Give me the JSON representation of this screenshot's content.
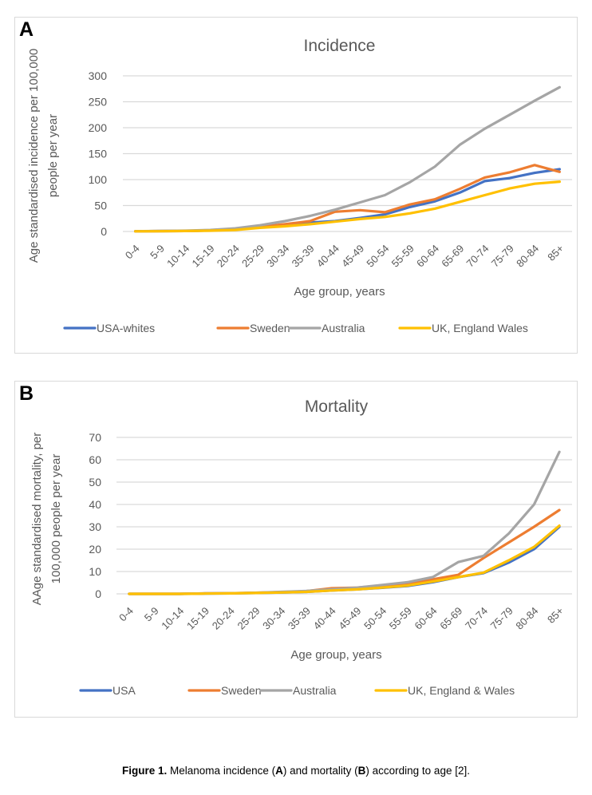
{
  "caption": {
    "label": "Figure 1.",
    "text_1": " Melanoma incidence (",
    "a": "A",
    "text_2": ") and mortality (",
    "b": "B",
    "text_3": ") according to age [2]."
  },
  "colors": {
    "blue": "#4472c4",
    "orange": "#ed7d31",
    "gray": "#a5a5a5",
    "yellow": "#ffc000",
    "grid": "#d9d9d9",
    "text": "#595959"
  },
  "chart_data": [
    {
      "panel": "A",
      "type": "line",
      "title": "Incidence",
      "xlabel": "Age group, years",
      "ylabel": "Age standardised incidence per 100,000 people per year",
      "ylabel_lines": [
        "Age standardised incidence per 100,000",
        "people per year"
      ],
      "ylim": [
        0,
        300
      ],
      "yticks": [
        0,
        50,
        100,
        150,
        200,
        250,
        300
      ],
      "grid": true,
      "legend": "bottom",
      "categories": [
        "0-4",
        "5-9",
        "10-14",
        "15-19",
        "20-24",
        "25-29",
        "30-34",
        "35-39",
        "40-44",
        "45-49",
        "50-54",
        "55-59",
        "60-64",
        "65-69",
        "70-74",
        "75-79",
        "80-84",
        "85+"
      ],
      "series": [
        {
          "name": "USA-whites",
          "color": "#4472c4",
          "values": [
            0.5,
            0.8,
            1,
            2,
            4,
            8,
            13,
            17,
            20,
            26,
            33,
            47,
            58,
            75,
            97,
            103,
            113,
            120
          ]
        },
        {
          "name": "Sweden",
          "color": "#ed7d31",
          "values": [
            0.5,
            0.8,
            1,
            2,
            4,
            9,
            14,
            20,
            38,
            41,
            37,
            52,
            62,
            82,
            104,
            114,
            128,
            115
          ]
        },
        {
          "name": "Australia",
          "color": "#a5a5a5",
          "values": [
            0.5,
            1,
            1.5,
            3,
            6,
            12,
            20,
            30,
            42,
            56,
            70,
            95,
            125,
            167,
            198,
            225,
            252,
            278
          ]
        },
        {
          "name": "UK, England Wales",
          "color": "#ffc000",
          "values": [
            0.3,
            0.5,
            1,
            1.5,
            3,
            7,
            10,
            14,
            19,
            24,
            28,
            35,
            44,
            57,
            70,
            83,
            92,
            96
          ]
        }
      ]
    },
    {
      "panel": "B",
      "type": "line",
      "title": "Mortality",
      "xlabel": "Age group, years",
      "ylabel": "AAge standardised mortality, per 100,000 people per year",
      "ylabel_lines": [
        "AAge standardised mortality, per",
        "100,000 people per year"
      ],
      "ylim": [
        0,
        70
      ],
      "yticks": [
        0,
        10,
        20,
        30,
        40,
        50,
        60,
        70
      ],
      "grid": true,
      "legend": "bottom",
      "categories": [
        "0-4",
        "5-9",
        "10-14",
        "15-19",
        "20-24",
        "25-29",
        "30-34",
        "35-39",
        "40-44",
        "45-49",
        "50-54",
        "55-59",
        "60-64",
        "65-69",
        "70-74",
        "75-79",
        "80-84",
        "85+"
      ],
      "series": [
        {
          "name": "USA",
          "color": "#4472c4",
          "values": [
            0,
            0,
            0,
            0.1,
            0.2,
            0.4,
            0.6,
            0.9,
            1.5,
            2.0,
            2.7,
            3.5,
            5.2,
            7.5,
            9.3,
            14,
            20,
            30
          ]
        },
        {
          "name": "Sweden",
          "color": "#ed7d31",
          "values": [
            0,
            0,
            0,
            0.2,
            0.3,
            0.5,
            0.8,
            1.2,
            2.5,
            2.8,
            3.7,
            4.5,
            6.5,
            8.5,
            16,
            23,
            30,
            37.5
          ]
        },
        {
          "name": "Australia",
          "color": "#a5a5a5",
          "values": [
            0,
            0,
            0,
            0.2,
            0.3,
            0.5,
            0.9,
            1.3,
            2.0,
            2.8,
            4.0,
            5.2,
            7.5,
            14.2,
            17,
            27,
            40,
            63.5
          ]
        },
        {
          "name": "UK, England & Wales",
          "color": "#ffc000",
          "values": [
            0,
            0,
            0,
            0.1,
            0.2,
            0.4,
            0.6,
            0.9,
            1.5,
            2.0,
            2.8,
            3.7,
            5.5,
            7.5,
            9.5,
            15,
            21,
            30.5
          ]
        }
      ]
    }
  ]
}
